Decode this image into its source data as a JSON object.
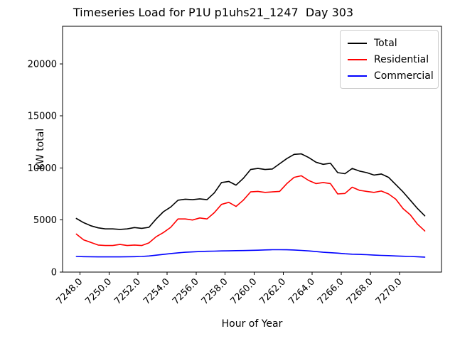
{
  "chart_data": {
    "type": "line",
    "title": "Timeseries Load for P1U p1uhs21_1247  Day 303",
    "xlabel": "Hour of Year",
    "ylabel": "kW total",
    "grid": false,
    "legend_position": "upper right",
    "xlim": [
      7246.8,
      7272.9
    ],
    "ylim": [
      0,
      23600
    ],
    "xticks": [
      7248,
      7250,
      7252,
      7254,
      7256,
      7258,
      7260,
      7262,
      7264,
      7266,
      7268,
      7270
    ],
    "xtick_labels": [
      "7248.0",
      "7250.0",
      "7252.0",
      "7254.0",
      "7256.0",
      "7258.0",
      "7260.0",
      "7262.0",
      "7264.0",
      "7266.0",
      "7268.0",
      "7270.0"
    ],
    "yticks": [
      0,
      5000,
      10000,
      15000,
      20000
    ],
    "ytick_labels": [
      "0",
      "5000",
      "10000",
      "15000",
      "20000"
    ],
    "x": [
      7247.75,
      7248.25,
      7248.75,
      7249.25,
      7249.75,
      7250.25,
      7250.75,
      7251.25,
      7251.75,
      7252.25,
      7252.75,
      7253.25,
      7253.75,
      7254.25,
      7254.75,
      7255.25,
      7255.75,
      7256.25,
      7256.75,
      7257.25,
      7257.75,
      7258.25,
      7258.75,
      7259.25,
      7259.75,
      7260.25,
      7260.75,
      7261.25,
      7261.75,
      7262.25,
      7262.75,
      7263.25,
      7263.75,
      7264.25,
      7264.75,
      7265.25,
      7265.75,
      7266.25,
      7266.75,
      7267.25,
      7267.75,
      7268.25,
      7268.75,
      7269.25,
      7269.75,
      7270.25,
      7270.75,
      7271.25,
      7271.75
    ],
    "series": [
      {
        "name": "Total",
        "color": "#000000",
        "values": [
          5150,
          4750,
          4450,
          4250,
          4150,
          4150,
          4100,
          4150,
          4280,
          4200,
          4300,
          5100,
          5800,
          6250,
          6900,
          7000,
          6950,
          7030,
          6950,
          7600,
          8600,
          8700,
          8350,
          9000,
          9850,
          9950,
          9850,
          9900,
          10400,
          10900,
          11300,
          11350,
          11000,
          10550,
          10350,
          10450,
          9550,
          9450,
          9950,
          9700,
          9550,
          9320,
          9420,
          9100,
          8400,
          7700,
          6900,
          6100,
          5400
        ]
      },
      {
        "name": "Residential",
        "color": "#ff0000",
        "values": [
          3650,
          3100,
          2850,
          2600,
          2550,
          2550,
          2650,
          2550,
          2600,
          2550,
          2800,
          3400,
          3800,
          4300,
          5100,
          5100,
          5000,
          5200,
          5100,
          5700,
          6500,
          6700,
          6300,
          6900,
          7700,
          7750,
          7650,
          7700,
          7750,
          8500,
          9100,
          9250,
          8800,
          8500,
          8600,
          8500,
          7500,
          7550,
          8150,
          7850,
          7750,
          7650,
          7780,
          7500,
          7000,
          6100,
          5500,
          4600,
          3950
        ]
      },
      {
        "name": "Commercial",
        "color": "#0000ff",
        "values": [
          1500,
          1480,
          1470,
          1460,
          1460,
          1460,
          1460,
          1470,
          1480,
          1500,
          1550,
          1620,
          1700,
          1780,
          1850,
          1900,
          1940,
          1970,
          2000,
          2010,
          2030,
          2040,
          2060,
          2070,
          2090,
          2100,
          2130,
          2150,
          2150,
          2140,
          2120,
          2080,
          2030,
          1970,
          1900,
          1860,
          1820,
          1760,
          1720,
          1700,
          1670,
          1630,
          1600,
          1580,
          1550,
          1520,
          1500,
          1470,
          1440
        ]
      }
    ]
  }
}
